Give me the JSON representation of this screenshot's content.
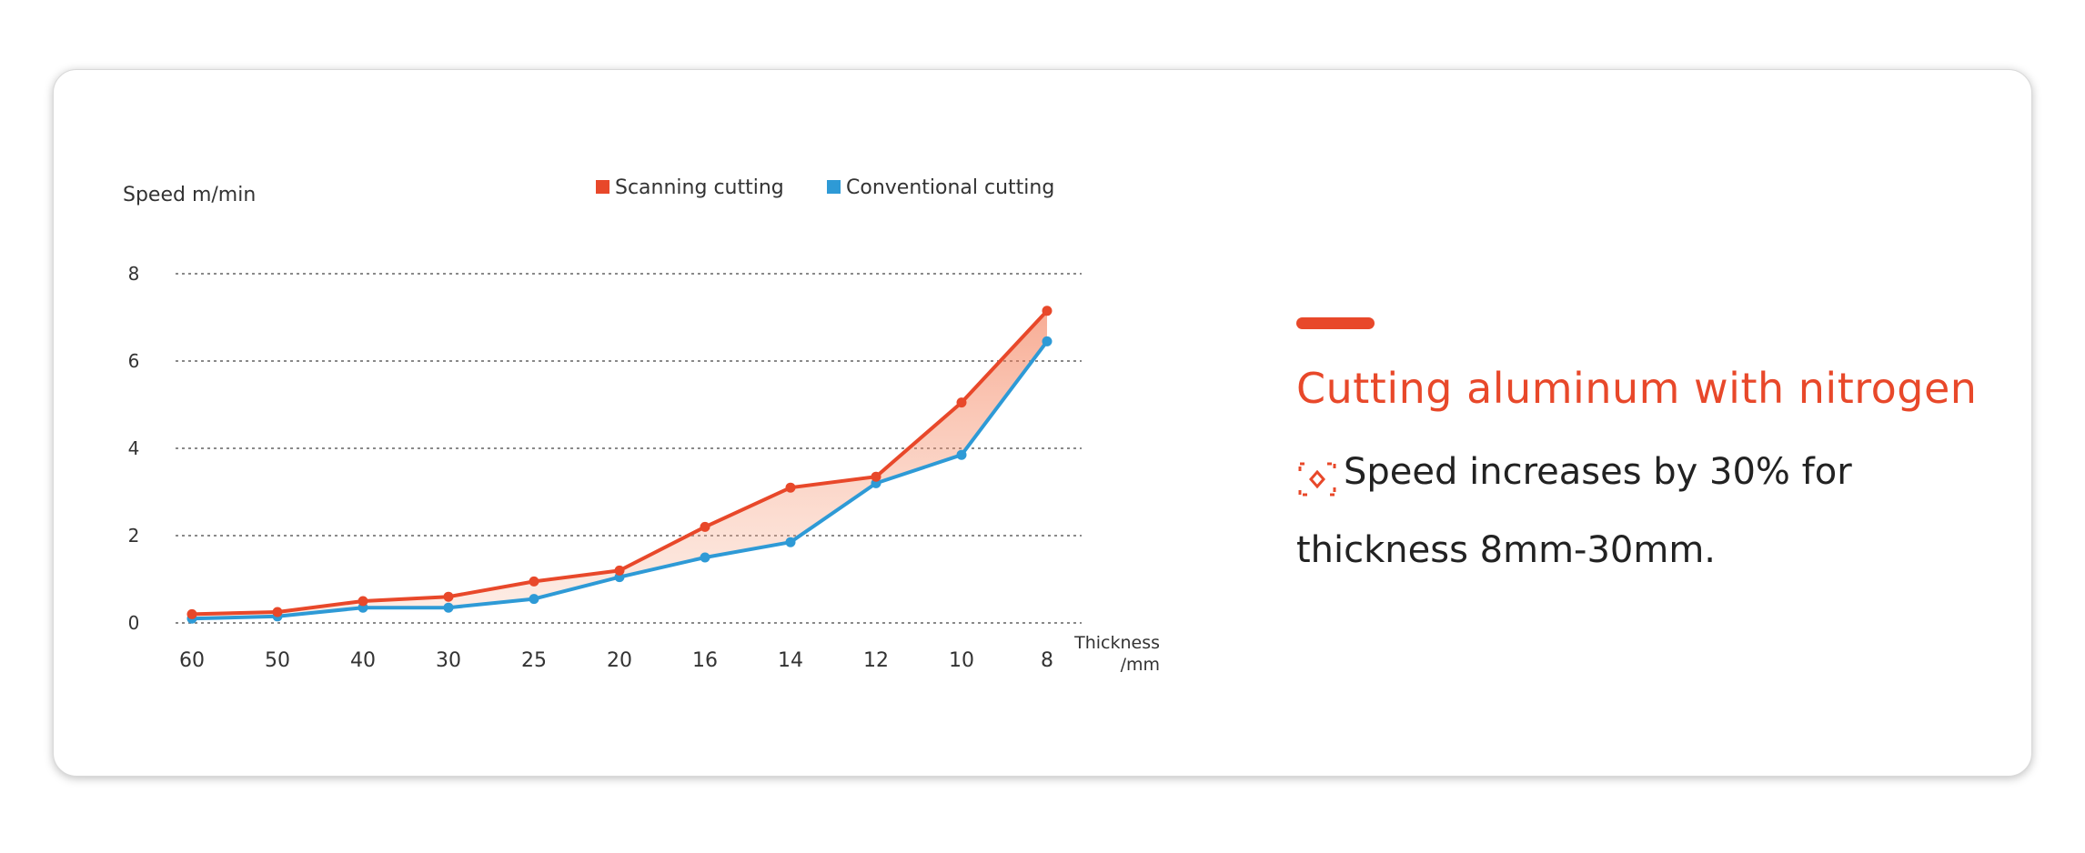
{
  "colors": {
    "scanning": "#e8482a",
    "conventional": "#2e9ad6",
    "headline": "#e8482a"
  },
  "text": {
    "headline": "Cutting aluminum with nitrogen",
    "description_line1": "Speed increases by 30% for",
    "description_line2": "thickness 8mm-30mm."
  },
  "icons": {
    "description_marker": "dashed-bracket-diamond-icon"
  },
  "chart_data": {
    "type": "line",
    "ylabel": "Speed m/min",
    "xlabel_line1": "Thickness",
    "xlabel_line2": "/mm",
    "categories": [
      "60",
      "50",
      "40",
      "30",
      "25",
      "20",
      "16",
      "14",
      "12",
      "10",
      "8"
    ],
    "ylim": [
      0,
      8
    ],
    "yticks": [
      0,
      2,
      4,
      6,
      8
    ],
    "ytick_labels": [
      "0",
      "2",
      "4",
      "6",
      "8"
    ],
    "grid": "horizontal-dotted",
    "legend_position": "top",
    "series": [
      {
        "name": "Scanning cutting",
        "values": [
          0.2,
          0.25,
          0.5,
          0.6,
          0.95,
          1.2,
          2.2,
          3.1,
          3.35,
          5.05,
          7.15
        ]
      },
      {
        "name": "Conventional cutting",
        "values": [
          0.1,
          0.15,
          0.35,
          0.35,
          0.55,
          1.05,
          1.5,
          1.85,
          3.2,
          3.85,
          6.45
        ]
      }
    ]
  }
}
